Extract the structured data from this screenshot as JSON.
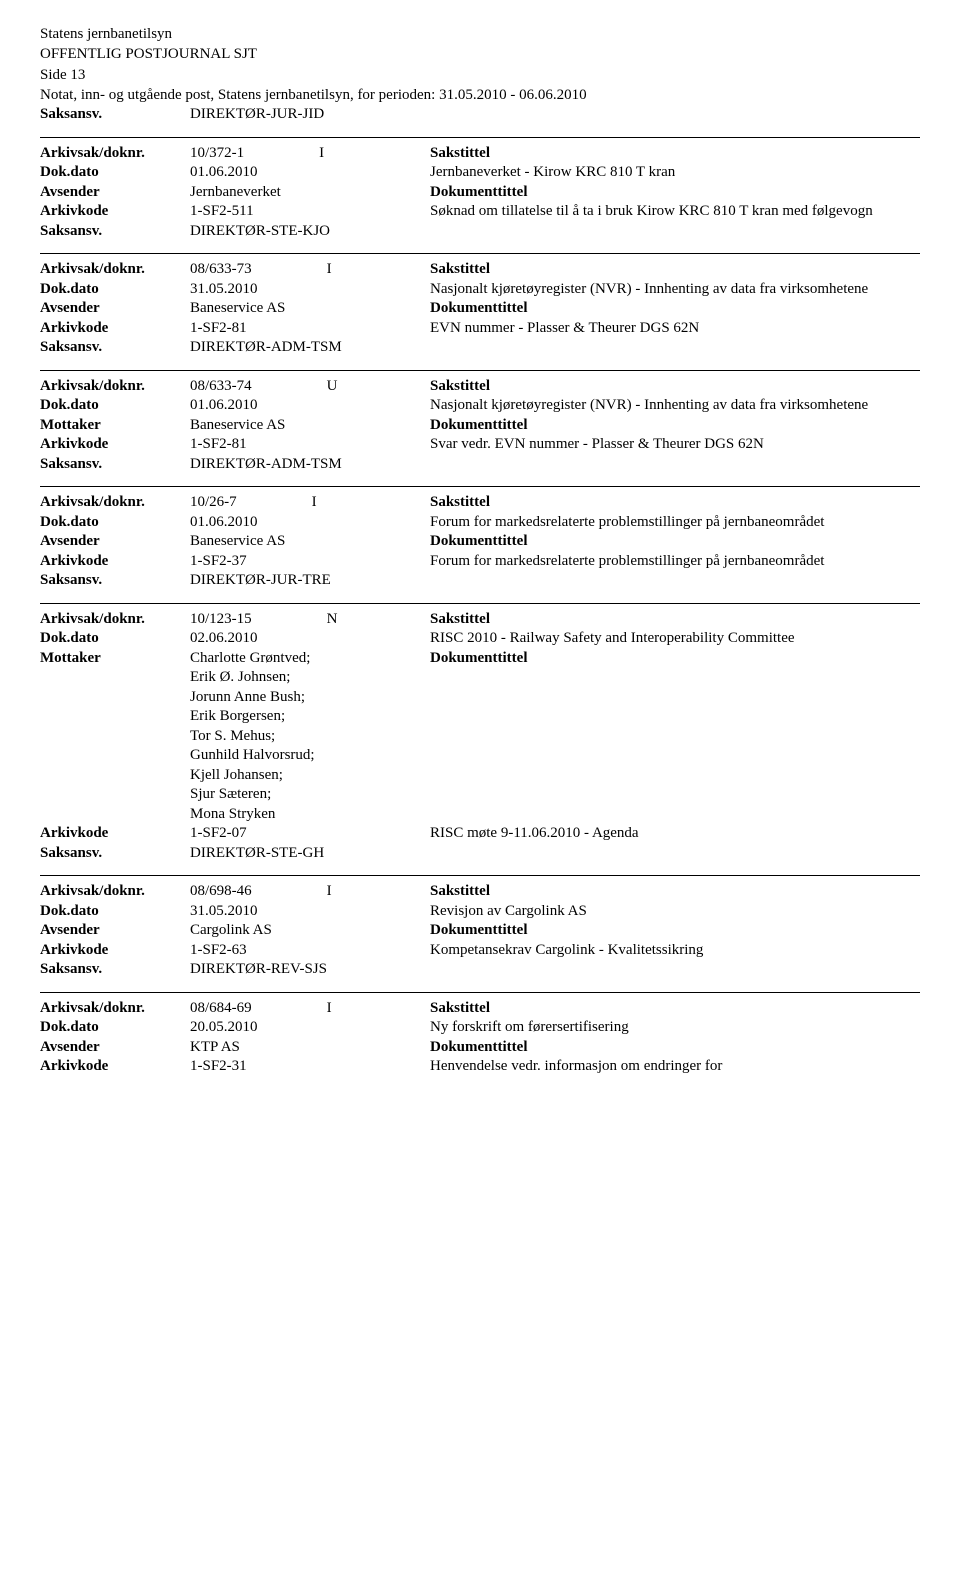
{
  "header": {
    "org": "Statens jernbanetilsyn",
    "journal": "OFFENTLIG POSTJOURNAL SJT",
    "side": "Side 13",
    "note": "Notat, inn- og utgående post, Statens jernbanetilsyn, for perioden: 31.05.2010 - 06.06.2010"
  },
  "labels": {
    "saksansv": "Saksansv.",
    "arkivsak": "Arkivsak/doknr.",
    "dokdato": "Dok.dato",
    "avsender": "Avsender",
    "mottaker": "Mottaker",
    "arkivkode": "Arkivkode",
    "sakstittel": "Sakstittel",
    "dokumenttittel": "Dokumenttittel"
  },
  "top_saksansv": "DIREKTØR-JUR-JID",
  "entries": [
    {
      "arkivsak": "10/372-1",
      "io": "I",
      "dokdato": "01.06.2010",
      "party_label": "Avsender",
      "party": [
        "Jernbaneverket"
      ],
      "arkivkode": "1-SF2-511",
      "saksansv": "DIREKTØR-STE-KJO",
      "sakstittel": "Jernbaneverket - Kirow KRC 810 T kran",
      "dokumenttittel": "Søknad om tillatelse til å ta i bruk Kirow KRC 810 T kran med følgevogn"
    },
    {
      "arkivsak": "08/633-73",
      "io": "I",
      "dokdato": "31.05.2010",
      "party_label": "Avsender",
      "party": [
        "Baneservice AS"
      ],
      "arkivkode": "1-SF2-81",
      "saksansv": "DIREKTØR-ADM-TSM",
      "sakstittel": "Nasjonalt kjøretøyregister (NVR) - Innhenting av data fra virksomhetene",
      "dokumenttittel": "EVN nummer - Plasser & Theurer DGS 62N"
    },
    {
      "arkivsak": "08/633-74",
      "io": "U",
      "dokdato": "01.06.2010",
      "party_label": "Mottaker",
      "party": [
        "Baneservice AS"
      ],
      "arkivkode": "1-SF2-81",
      "saksansv": "DIREKTØR-ADM-TSM",
      "sakstittel": "Nasjonalt kjøretøyregister (NVR) - Innhenting av data fra virksomhetene",
      "dokumenttittel": "Svar vedr. EVN nummer - Plasser & Theurer DGS 62N"
    },
    {
      "arkivsak": "10/26-7",
      "io": "I",
      "dokdato": "01.06.2010",
      "party_label": "Avsender",
      "party": [
        "Baneservice AS"
      ],
      "arkivkode": "1-SF2-37",
      "saksansv": "DIREKTØR-JUR-TRE",
      "sakstittel": "Forum for markedsrelaterte problemstillinger på jernbaneområdet",
      "dokumenttittel": "Forum for markedsrelaterte problemstillinger på jernbaneområdet"
    },
    {
      "arkivsak": "10/123-15",
      "io": "N",
      "dokdato": "02.06.2010",
      "party_label": "Mottaker",
      "party": [
        "Charlotte Grøntved;",
        "Erik Ø. Johnsen;",
        "Jorunn Anne Bush;",
        "Erik Borgersen;",
        "Tor S. Mehus;",
        "Gunhild Halvorsrud;",
        "Kjell Johansen;",
        "Sjur Sæteren;",
        "Mona Stryken"
      ],
      "arkivkode": "1-SF2-07",
      "saksansv": "DIREKTØR-STE-GH",
      "sakstittel": "RISC 2010 - Railway Safety and Interoperability Committee",
      "dokumenttittel": "",
      "doktittel_right_of_arkivkode": "RISC møte 9-11.06.2010 - Agenda"
    },
    {
      "arkivsak": "08/698-46",
      "io": "I",
      "dokdato": "31.05.2010",
      "party_label": "Avsender",
      "party": [
        "Cargolink AS"
      ],
      "arkivkode": "1-SF2-63",
      "saksansv": "DIREKTØR-REV-SJS",
      "sakstittel": "Revisjon av Cargolink AS",
      "dokumenttittel": "Kompetansekrav Cargolink - Kvalitetssikring"
    },
    {
      "arkivsak": "08/684-69",
      "io": "I",
      "dokdato": "20.05.2010",
      "party_label": "Avsender",
      "party": [
        "KTP AS"
      ],
      "arkivkode": "1-SF2-31",
      "sakstittel": "Ny forskrift om førersertifisering",
      "dokumenttittel": "Henvendelse vedr. informasjon om endringer for",
      "no_saksansv": true
    }
  ]
}
